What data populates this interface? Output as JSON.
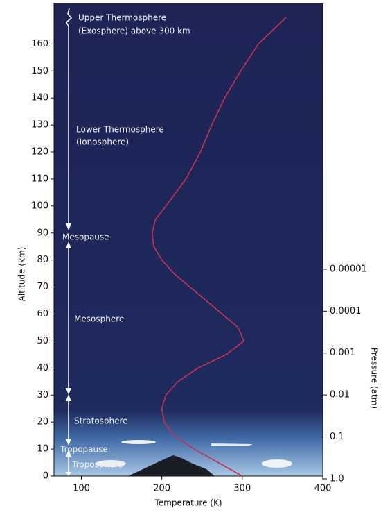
{
  "chart_data": {
    "type": "line",
    "x_label": "Temperature (K)",
    "y_label": "Altitude (km)",
    "y2_label": "Pressure (atm)",
    "annotations": [
      "Upper Thermosphere",
      "(Exosphere) above 300 km",
      "Lower Thermosphere",
      "(Ionosphere)",
      "Mesopause",
      "Mesosphere",
      "Stratosphere",
      "Tropopause",
      "Troposphere"
    ],
    "x": [
      300,
      270,
      240,
      215,
      203,
      200,
      205,
      220,
      245,
      280,
      302,
      295,
      275,
      255,
      235,
      215,
      200,
      190,
      188,
      192,
      205,
      230,
      248,
      262,
      278,
      298,
      320,
      355
    ],
    "series": [
      {
        "color": "#c8324e",
        "values": [
          0,
          5,
          10,
          15,
          20,
          25,
          30,
          35,
          40,
          45,
          50,
          55,
          60,
          65,
          70,
          75,
          80,
          85,
          90,
          95,
          100,
          110,
          120,
          130,
          140,
          150,
          160,
          170
        ]
      }
    ],
    "xlim": [
      66,
      400
    ],
    "ylim": [
      0,
      175
    ],
    "y2lim": [
      0.86,
      4.6e-12
    ],
    "y2scale": "log",
    "xticks": [
      100,
      200,
      300,
      400
    ],
    "yticks": [
      0,
      10,
      20,
      30,
      40,
      50,
      60,
      70,
      80,
      90,
      100,
      110,
      120,
      130,
      140,
      150,
      160
    ],
    "y2ticks": [
      {
        "value": 1,
        "label": "1.0"
      },
      0.1,
      0.01,
      0.001,
      0.0001,
      1e-05
    ]
  }
}
